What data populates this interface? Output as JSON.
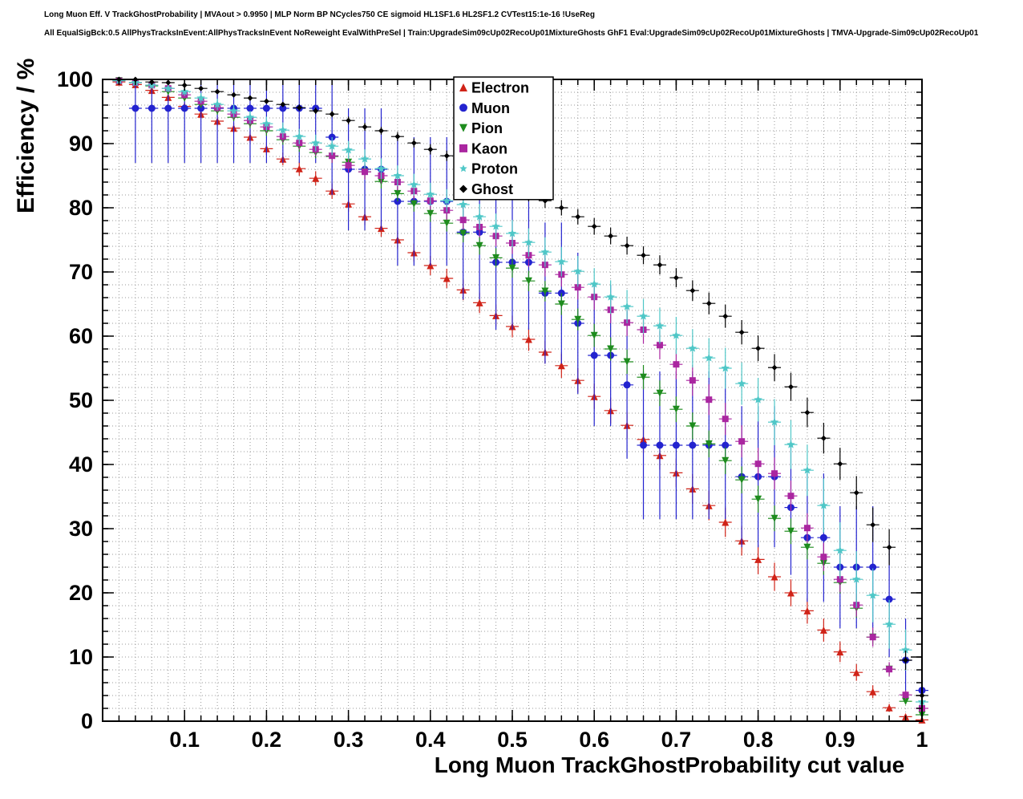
{
  "header": {
    "line1": "Long Muon Eff. V TrackGhostProbability | MVAout > 0.9950 | MLP Norm BP NCycles750 CE sigmoid HL1SF1.6 HL2SF1.2 CVTest15:1e-16 !UseReg",
    "line2": "All EqualSigBck:0.5 AllPhysTracksInEvent:AllPhysTracksInEvent NoReweight EvalWithPreSel | Train:UpgradeSim09cUp02RecoUp01MixtureGhosts GhF1 Eval:UpgradeSim09cUp02RecoUp01MixtureGhosts | TMVA-Upgrade-Sim09cUp02RecoUp01"
  },
  "chart_data": {
    "type": "scatter",
    "title": "",
    "xlabel": "Long Muon TrackGhostProbability cut value",
    "ylabel": "Efficiency / %",
    "xlim": [
      0,
      1
    ],
    "ylim": [
      0,
      100
    ],
    "grid": true,
    "legend_position": "top-center",
    "x_ticks": {
      "values": [
        0.1,
        0.2,
        0.3,
        0.4,
        0.5,
        0.6,
        0.7,
        0.8,
        0.9,
        1.0
      ],
      "labels": [
        "0.1",
        "0.2",
        "0.3",
        "0.4",
        "0.5",
        "0.6",
        "0.7",
        "0.8",
        "0.9",
        "1"
      ]
    },
    "y_ticks": {
      "values": [
        0,
        10,
        20,
        30,
        40,
        50,
        60,
        70,
        80,
        90,
        100
      ],
      "labels": [
        "0",
        "10",
        "20",
        "30",
        "40",
        "50",
        "60",
        "70",
        "80",
        "90",
        "100"
      ]
    },
    "minor_step": {
      "x": 0.02,
      "y": 2
    },
    "x": [
      0.02,
      0.04,
      0.06,
      0.08,
      0.1,
      0.12,
      0.14,
      0.16,
      0.18,
      0.2,
      0.22,
      0.24,
      0.26,
      0.28,
      0.3,
      0.32,
      0.34,
      0.36,
      0.38,
      0.4,
      0.42,
      0.44,
      0.46,
      0.48,
      0.5,
      0.52,
      0.54,
      0.56,
      0.58,
      0.6,
      0.62,
      0.64,
      0.66,
      0.68,
      0.7,
      0.72,
      0.74,
      0.76,
      0.78,
      0.8,
      0.82,
      0.84,
      0.86,
      0.88,
      0.9,
      0.92,
      0.94,
      0.96,
      0.98,
      1.0
    ],
    "series": [
      {
        "name": "Electron",
        "marker": "triangle-up",
        "color": "#d02318",
        "values": [
          99.6,
          99.2,
          98.3,
          97.2,
          95.8,
          94.6,
          93.5,
          92.4,
          91.0,
          89.2,
          87.6,
          86.1,
          84.6,
          82.6,
          80.6,
          78.6,
          76.8,
          75.0,
          73.0,
          71.0,
          69.0,
          67.2,
          65.2,
          63.2,
          61.5,
          59.5,
          57.5,
          55.4,
          53.1,
          50.6,
          48.4,
          46.1,
          43.9,
          41.4,
          38.7,
          36.2,
          33.6,
          31.0,
          28.1,
          25.2,
          22.5,
          20.0,
          17.2,
          14.2,
          10.8,
          7.6,
          4.6,
          2.1,
          0.7,
          0.2
        ],
        "err": [
          0.3,
          0.4,
          0.5,
          0.5,
          0.6,
          0.7,
          0.8,
          0.8,
          0.9,
          1.0,
          1.0,
          1.1,
          1.1,
          1.2,
          1.2,
          1.3,
          1.3,
          1.4,
          1.4,
          1.5,
          1.5,
          1.6,
          1.6,
          1.7,
          1.7,
          1.8,
          1.8,
          1.9,
          1.9,
          2.0,
          2.0,
          2.1,
          2.1,
          2.2,
          2.2,
          2.3,
          2.3,
          2.3,
          2.3,
          2.3,
          2.2,
          2.1,
          2.0,
          1.8,
          1.6,
          1.3,
          1.0,
          0.6,
          0.3,
          0.2
        ]
      },
      {
        "name": "Muon",
        "marker": "circle",
        "color": "#2323cf",
        "values": [
          null,
          95.5,
          95.5,
          95.5,
          95.5,
          95.5,
          95.5,
          95.5,
          95.5,
          95.5,
          95.5,
          95.5,
          95.5,
          91.0,
          86.0,
          86.0,
          86.0,
          81.0,
          81.0,
          81.0,
          81.0,
          76.2,
          76.2,
          71.5,
          71.5,
          71.5,
          66.7,
          66.7,
          62.0,
          57.0,
          57.0,
          52.4,
          43.0,
          43.0,
          43.0,
          43.0,
          43.0,
          43.0,
          38.1,
          38.1,
          38.1,
          33.3,
          28.6,
          28.6,
          24.0,
          24.0,
          24.0,
          19.0,
          9.5,
          4.8
        ],
        "err": [
          null,
          8.5,
          8.5,
          8.5,
          8.5,
          8.5,
          8.5,
          8.5,
          8.5,
          8.5,
          8.5,
          8.5,
          8.5,
          9.0,
          9.5,
          9.5,
          9.5,
          10.0,
          10.0,
          10.0,
          10.0,
          10.5,
          10.5,
          10.5,
          10.5,
          10.5,
          11.0,
          11.0,
          11.0,
          11.0,
          11.0,
          11.5,
          11.5,
          11.5,
          11.5,
          11.5,
          11.5,
          11.5,
          11.0,
          11.0,
          11.0,
          10.5,
          10.0,
          10.0,
          9.5,
          9.5,
          9.5,
          9.0,
          6.5,
          4.5
        ]
      },
      {
        "name": "Pion",
        "marker": "triangle-down",
        "color": "#1e8c1e",
        "values": [
          99.8,
          99.5,
          99.0,
          98.1,
          97.1,
          96.1,
          95.1,
          94.1,
          93.1,
          92.0,
          90.6,
          89.6,
          88.6,
          88.0,
          87.1,
          85.6,
          84.1,
          82.2,
          80.6,
          79.1,
          77.6,
          76.0,
          74.1,
          72.2,
          70.6,
          68.6,
          67.0,
          65.0,
          62.6,
          60.1,
          58.0,
          56.0,
          53.6,
          51.1,
          48.6,
          46.0,
          43.2,
          40.6,
          37.6,
          34.6,
          31.6,
          29.6,
          27.1,
          24.6,
          21.6,
          17.6,
          13.1,
          8.1,
          3.1,
          1.0
        ],
        "err": [
          0.2,
          0.3,
          0.4,
          0.4,
          0.5,
          0.5,
          0.6,
          0.6,
          0.7,
          0.8,
          0.8,
          0.9,
          0.9,
          1.0,
          1.0,
          1.1,
          1.1,
          1.2,
          1.2,
          1.3,
          1.3,
          1.4,
          1.4,
          1.5,
          1.5,
          1.6,
          1.6,
          1.7,
          1.7,
          1.8,
          1.8,
          1.9,
          1.9,
          2.0,
          2.0,
          2.1,
          2.1,
          2.1,
          2.1,
          2.1,
          2.0,
          2.0,
          1.9,
          1.8,
          1.7,
          1.5,
          1.2,
          0.9,
          0.5,
          0.3
        ]
      },
      {
        "name": "Kaon",
        "marker": "square",
        "color": "#aa26a0",
        "values": [
          99.8,
          99.5,
          99.1,
          98.6,
          97.6,
          96.6,
          95.6,
          94.6,
          93.6,
          92.6,
          91.1,
          90.1,
          89.1,
          88.1,
          86.6,
          85.6,
          85.0,
          84.0,
          82.6,
          81.1,
          79.6,
          78.1,
          77.0,
          75.6,
          74.5,
          72.6,
          71.1,
          69.6,
          67.6,
          66.1,
          64.1,
          62.1,
          61.0,
          58.6,
          55.6,
          53.1,
          50.1,
          47.1,
          43.6,
          40.1,
          38.6,
          35.1,
          30.1,
          25.6,
          22.1,
          18.1,
          13.1,
          8.1,
          4.1,
          2.0
        ],
        "err": [
          0.3,
          0.4,
          0.5,
          0.5,
          0.6,
          0.7,
          0.7,
          0.8,
          0.8,
          0.9,
          0.9,
          1.0,
          1.0,
          1.1,
          1.1,
          1.2,
          1.2,
          1.3,
          1.3,
          1.4,
          1.5,
          1.5,
          1.6,
          1.6,
          1.7,
          1.8,
          1.8,
          1.9,
          1.9,
          2.0,
          2.1,
          2.1,
          2.2,
          2.2,
          2.3,
          2.4,
          2.4,
          2.5,
          2.5,
          2.5,
          2.5,
          2.4,
          2.3,
          2.2,
          2.0,
          1.8,
          1.5,
          1.1,
          0.7,
          0.4
        ]
      },
      {
        "name": "Proton",
        "marker": "star",
        "color": "#4fc7c7",
        "values": [
          99.8,
          99.5,
          99.1,
          98.6,
          98.1,
          97.1,
          96.1,
          95.1,
          94.1,
          93.1,
          92.1,
          91.1,
          90.1,
          89.6,
          89.0,
          87.6,
          86.1,
          85.0,
          83.6,
          82.1,
          81.1,
          80.5,
          78.6,
          77.1,
          76.0,
          74.6,
          73.1,
          71.6,
          70.1,
          68.1,
          66.1,
          64.6,
          63.1,
          61.6,
          60.1,
          58.1,
          56.6,
          55.0,
          52.6,
          50.1,
          46.6,
          43.1,
          39.1,
          33.6,
          26.6,
          22.1,
          19.6,
          15.1,
          11.1,
          3.0
        ],
        "err": [
          0.3,
          0.4,
          0.5,
          0.6,
          0.7,
          0.8,
          0.9,
          1.0,
          1.0,
          1.1,
          1.2,
          1.2,
          1.3,
          1.4,
          1.4,
          1.5,
          1.6,
          1.6,
          1.7,
          1.8,
          1.8,
          1.9,
          2.0,
          2.0,
          2.1,
          2.2,
          2.3,
          2.3,
          2.4,
          2.5,
          2.6,
          2.6,
          2.7,
          2.8,
          2.9,
          3.0,
          3.1,
          3.2,
          3.3,
          3.4,
          3.6,
          3.8,
          4.0,
          4.2,
          4.4,
          4.4,
          4.2,
          3.8,
          3.2,
          1.8
        ]
      },
      {
        "name": "Ghost",
        "marker": "diamond",
        "color": "#000000",
        "values": [
          100.0,
          100.0,
          99.6,
          99.5,
          99.1,
          98.6,
          98.1,
          97.6,
          97.1,
          96.6,
          96.1,
          95.6,
          95.1,
          94.6,
          93.6,
          92.6,
          92.0,
          91.1,
          90.1,
          89.1,
          88.1,
          87.1,
          86.0,
          84.6,
          83.1,
          82.1,
          81.1,
          80.0,
          78.6,
          77.1,
          75.6,
          74.1,
          72.6,
          71.1,
          69.1,
          67.1,
          65.1,
          63.1,
          60.6,
          58.1,
          55.1,
          52.1,
          48.1,
          44.1,
          40.1,
          35.6,
          30.6,
          27.1,
          9.5,
          4.0
        ],
        "err": [
          0.1,
          0.1,
          0.2,
          0.2,
          0.2,
          0.3,
          0.3,
          0.3,
          0.4,
          0.4,
          0.4,
          0.5,
          0.5,
          0.5,
          0.6,
          0.6,
          0.6,
          0.7,
          0.7,
          0.8,
          0.8,
          0.9,
          0.9,
          1.0,
          1.0,
          1.1,
          1.1,
          1.2,
          1.2,
          1.3,
          1.3,
          1.4,
          1.4,
          1.5,
          1.5,
          1.6,
          1.7,
          1.8,
          1.9,
          2.0,
          2.1,
          2.2,
          2.3,
          2.4,
          2.5,
          2.6,
          2.7,
          2.8,
          1.5,
          1.0
        ]
      }
    ]
  }
}
